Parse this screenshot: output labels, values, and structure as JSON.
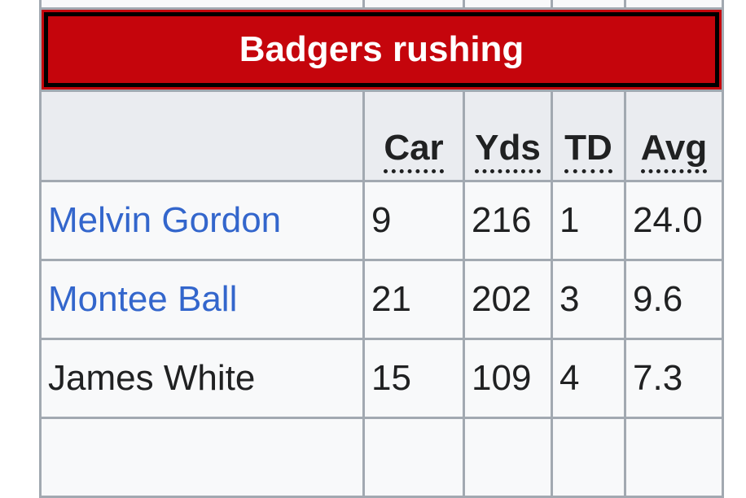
{
  "table": {
    "title": "Badgers rushing",
    "title_bg": "#c5050c",
    "columns": [
      "",
      "Car",
      "Yds",
      "TD",
      "Avg"
    ],
    "rows": [
      {
        "name": "Melvin Gordon",
        "link": true,
        "car": "9",
        "yds": "216",
        "td": "1",
        "avg": "24.0"
      },
      {
        "name": "Montee Ball",
        "link": true,
        "car": "21",
        "yds": "202",
        "td": "3",
        "avg": "9.6"
      },
      {
        "name": "James White",
        "link": false,
        "car": "15",
        "yds": "109",
        "td": "4",
        "avg": "7.3"
      }
    ]
  }
}
